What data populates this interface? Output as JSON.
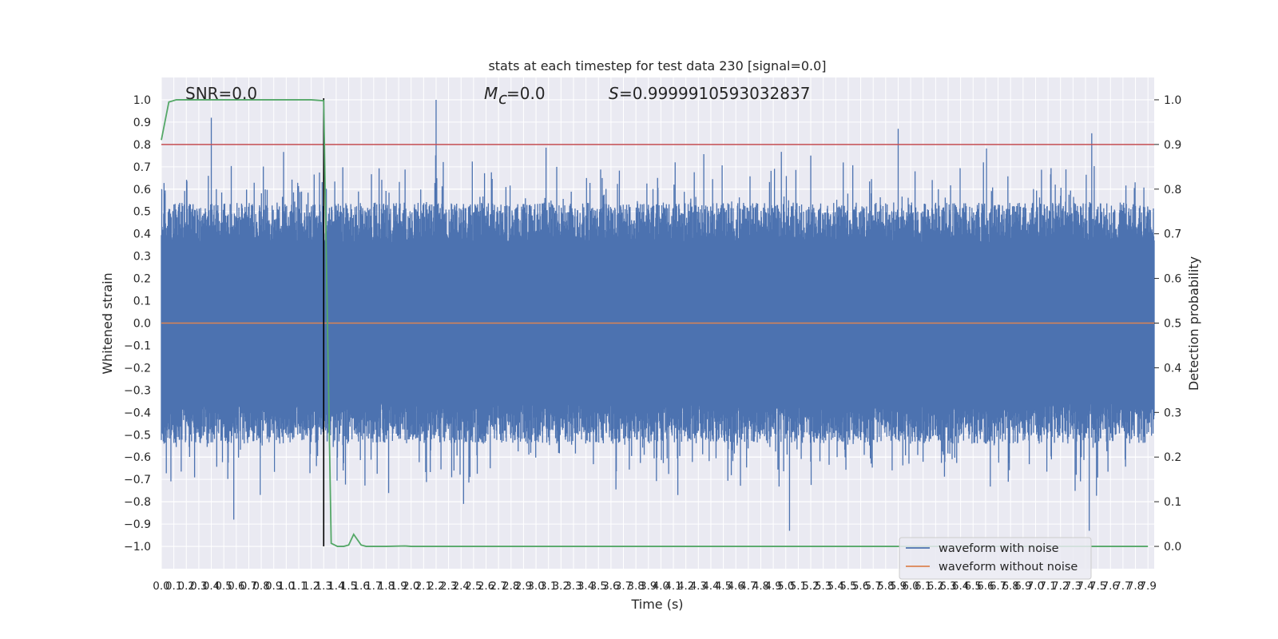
{
  "chart_data": {
    "type": "line",
    "title": "stats at each timestep for test data 230 [signal=0.0]",
    "xlabel": "Time (s)",
    "ylabel": "Whitened strain",
    "ylabel_right": "Detection probability",
    "xlim": [
      0.0,
      7.95
    ],
    "ylim": [
      -1.1,
      1.1
    ],
    "ylim_right": [
      -0.05,
      1.05
    ],
    "x_ticks": [
      "0.0",
      "0.1",
      "0.2",
      "0.3",
      "0.4",
      "0.5",
      "0.6",
      "0.7",
      "0.8",
      "0.9",
      "1.0",
      "1.1",
      "1.2",
      "1.3",
      "1.4",
      "1.5",
      "1.6",
      "1.7",
      "1.8",
      "1.9",
      "2.0",
      "2.1",
      "2.2",
      "2.3",
      "2.4",
      "2.5",
      "2.6",
      "2.7",
      "2.8",
      "2.9",
      "3.0",
      "3.1",
      "3.2",
      "3.3",
      "3.4",
      "3.5",
      "3.6",
      "3.7",
      "3.8",
      "3.9",
      "4.0",
      "4.1",
      "4.2",
      "4.3",
      "4.4",
      "4.5",
      "4.6",
      "4.7",
      "4.8",
      "4.9",
      "5.0",
      "5.1",
      "5.2",
      "5.3",
      "5.4",
      "5.5",
      "5.6",
      "5.7",
      "5.8",
      "5.9",
      "6.0",
      "6.1",
      "6.2",
      "6.3",
      "6.4",
      "6.5",
      "6.6",
      "6.7",
      "6.8",
      "6.9",
      "7.0",
      "7.1",
      "7.2",
      "7.3",
      "7.4",
      "7.5",
      "7.6",
      "7.7",
      "7.8",
      "7.9"
    ],
    "y_ticks": [
      "−1.0",
      "−0.9",
      "−0.8",
      "−0.7",
      "−0.6",
      "−0.5",
      "−0.4",
      "−0.3",
      "−0.2",
      "−0.1",
      "0.0",
      "0.1",
      "0.2",
      "0.3",
      "0.4",
      "0.5",
      "0.6",
      "0.7",
      "0.8",
      "0.9",
      "1.0"
    ],
    "y_ticks_right": [
      "0.0",
      "0.1",
      "0.2",
      "0.3",
      "0.4",
      "0.5",
      "0.6",
      "0.7",
      "0.8",
      "0.9",
      "1.0"
    ],
    "annotations": {
      "snr": "SNR=0.0",
      "mc": "=0.0",
      "score": "=0.9999910593032837"
    },
    "series": [
      {
        "name": "waveform with noise",
        "axis": "left",
        "color": "#4c72b0",
        "description": "dense whitened noise, amplitude roughly between -0.93 and 1.0",
        "peaks": [
          {
            "x": 0.4,
            "y": 0.92
          },
          {
            "x": 2.2,
            "y": 1.0
          },
          {
            "x": 5.9,
            "y": 0.87
          },
          {
            "x": 7.45,
            "y": 0.85
          },
          {
            "x": 0.58,
            "y": -0.88
          },
          {
            "x": 5.03,
            "y": -0.93
          },
          {
            "x": 7.43,
            "y": -0.93
          },
          {
            "x": 2.42,
            "y": -0.81
          }
        ]
      },
      {
        "name": "waveform without noise",
        "axis": "left",
        "color": "#dd8452",
        "x": [
          0.0,
          7.95
        ],
        "y": [
          0.0,
          0.0
        ]
      },
      {
        "name": "detection probability",
        "axis": "right",
        "color": "#55a868",
        "x": [
          0.0,
          0.06,
          0.12,
          0.5,
          1.0,
          1.2,
          1.3,
          1.33,
          1.36,
          1.41,
          1.46,
          1.5,
          1.54,
          1.6,
          1.64,
          1.8,
          1.95,
          2.0,
          2.1,
          3.0,
          5.0,
          7.9
        ],
        "y": [
          0.91,
          0.995,
          1.0,
          1.0,
          1.0,
          1.0,
          0.998,
          0.5,
          0.007,
          0.0,
          0.0,
          0.003,
          0.027,
          0.003,
          0.0,
          0.0,
          0.001,
          0.0,
          0.0,
          0.0,
          0.0,
          0.0
        ]
      }
    ],
    "threshold_line": {
      "axis": "right",
      "y": 0.9,
      "color": "#c44e52"
    },
    "detection_marker": {
      "x": 1.3,
      "color": "#000000"
    },
    "legend": {
      "placement": "lower-right",
      "entries": [
        {
          "label": "waveform with noise",
          "color": "#4c72b0"
        },
        {
          "label": "waveform without noise",
          "color": "#dd8452"
        }
      ]
    },
    "grid": true,
    "background": "#eaeaf2"
  }
}
